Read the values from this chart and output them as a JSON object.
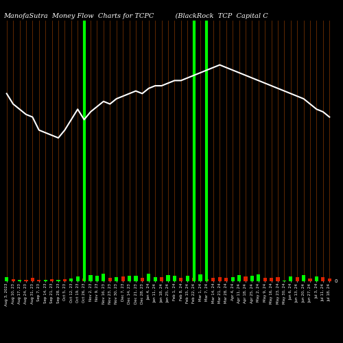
{
  "title": "ManofaSutra  Money Flow  Charts for TCPC          (BlackRock  TCP  Capital C",
  "background_color": "#000000",
  "line_color": "#ffffff",
  "highlight_color": "#00ff00",
  "highlight_indices": [
    12,
    29,
    31
  ],
  "orange_line_color": "#7a3300",
  "dates": [
    "Aug 3, 2023",
    "Aug 10, 23",
    "Aug 17, 23",
    "Aug 24, 23",
    "Aug 31, 23",
    "Sep 7, 23",
    "Sep 14, 23",
    "Sep 21, 23",
    "Sep 28, 23",
    "Oct 5, 23",
    "Oct 12, 23",
    "Oct 19, 23",
    "Oct 26, 23",
    "Nov 2, 23",
    "Nov 9, 23",
    "Nov 16, 23",
    "Nov 23, 23",
    "Nov 30, 23",
    "Dec 7, 23",
    "Dec 14, 23",
    "Dec 21, 23",
    "Dec 28, 23",
    "Jan 4, 24",
    "Jan 11, 24",
    "Jan 18, 24",
    "Jan 25, 24",
    "Feb 1, 24",
    "Feb 8, 24",
    "Feb 15, 24",
    "Feb 22, 24",
    "Mar 1, 24",
    "Mar 7, 24",
    "Mar 14, 24",
    "Mar 21, 24",
    "Mar 28, 24",
    "Apr 4, 24",
    "Apr 11, 24",
    "Apr 18, 24",
    "Apr 25, 24",
    "May 2, 24",
    "May 9, 24",
    "May 16, 24",
    "May 23, 24",
    "May 30, 24",
    "Jun 6, 24",
    "Jun 13, 24",
    "Jun 20, 24",
    "Jun 27, 24",
    "Jul 3, 24",
    "Jul 11, 24",
    "Jul 18, 24"
  ],
  "bar_values": [
    1.5,
    0.8,
    0.5,
    0.6,
    1.2,
    0.5,
    0.4,
    0.9,
    0.5,
    0.7,
    1.0,
    1.8,
    1.0,
    2.5,
    2.0,
    2.8,
    1.4,
    1.6,
    1.8,
    2.2,
    2.0,
    1.2,
    2.9,
    1.7,
    1.5,
    2.3,
    2.0,
    1.4,
    2.2,
    1.2,
    2.7,
    0.9,
    1.2,
    1.5,
    1.4,
    1.6,
    2.3,
    1.9,
    2.1,
    2.7,
    1.2,
    1.4,
    1.7,
    0.3,
    1.9,
    1.5,
    2.3,
    1.1,
    1.9,
    1.5,
    1.1
  ],
  "bar_colors": [
    "g",
    "r",
    "g",
    "r",
    "r",
    "r",
    "g",
    "r",
    "g",
    "r",
    "g",
    "g",
    "r",
    "g",
    "g",
    "g",
    "r",
    "g",
    "r",
    "g",
    "g",
    "r",
    "g",
    "g",
    "r",
    "g",
    "g",
    "r",
    "g",
    "r",
    "g",
    "r",
    "r",
    "r",
    "r",
    "g",
    "g",
    "r",
    "g",
    "g",
    "r",
    "r",
    "r",
    "g",
    "g",
    "r",
    "g",
    "r",
    "g",
    "r",
    "r"
  ],
  "line_values": [
    72,
    68,
    66,
    64,
    63,
    58,
    57,
    56,
    55,
    58,
    62,
    66,
    62,
    65,
    67,
    69,
    68,
    70,
    71,
    72,
    73,
    72,
    74,
    75,
    75,
    76,
    77,
    77,
    78,
    79,
    80,
    81,
    82,
    83,
    82,
    81,
    80,
    79,
    78,
    77,
    76,
    75,
    74,
    73,
    72,
    71,
    70,
    68,
    66,
    65,
    63
  ],
  "ylim": [
    0,
    100
  ],
  "title_fontsize": 7.0,
  "tick_fontsize": 4.0
}
